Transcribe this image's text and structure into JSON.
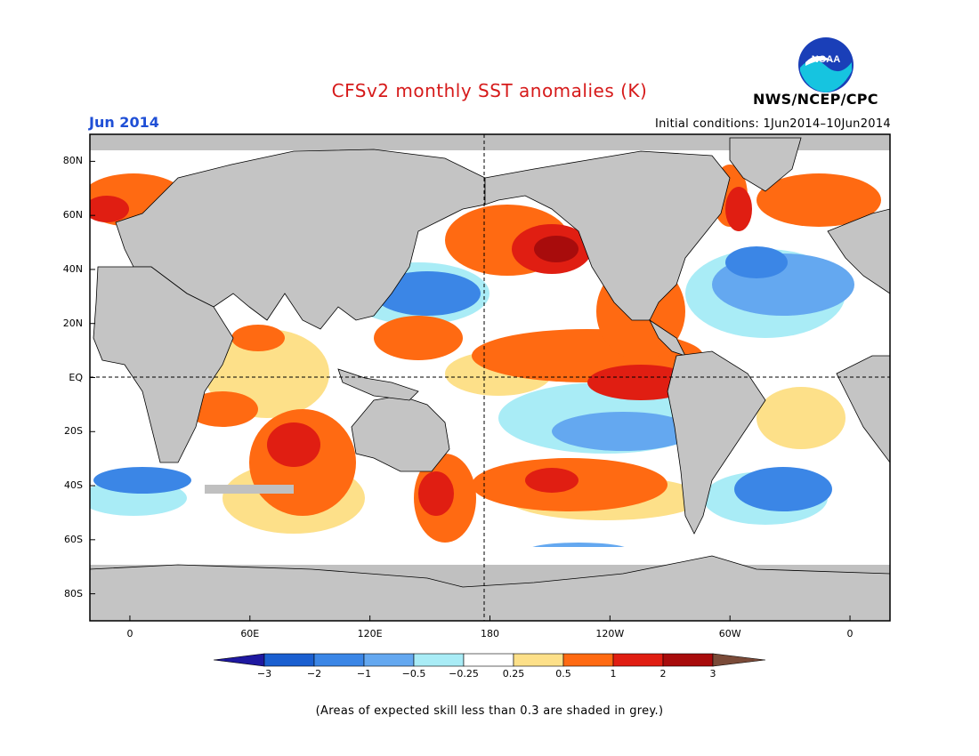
{
  "header": {
    "title": "CFSv2 monthly SST anomalies (K)",
    "agency": "NWS/NCEP/CPC",
    "month": "Jun 2014",
    "initial_conditions": "Initial conditions: 1Jun2014–10Jun2014"
  },
  "logo": {
    "text": "NOAA",
    "icon": "noaa-logo-icon"
  },
  "axes": {
    "lat_labels": [
      "80N",
      "60N",
      "40N",
      "20N",
      "EQ",
      "20S",
      "40S",
      "60S",
      "80S"
    ],
    "lat_values": [
      80,
      60,
      40,
      20,
      0,
      -20,
      -40,
      -60,
      -80
    ],
    "lon_labels": [
      "0",
      "60E",
      "120E",
      "180",
      "120W",
      "60W",
      "0"
    ],
    "lon_values": [
      0,
      60,
      120,
      180,
      240,
      300,
      360
    ],
    "lat_range": [
      -90,
      90
    ],
    "lon_range": [
      -20,
      380
    ]
  },
  "colorbar": {
    "labels": [
      "−3",
      "−2",
      "−1",
      "−0.5",
      "−0.25",
      "0.25",
      "0.5",
      "1",
      "2",
      "3"
    ],
    "colors": [
      "#1e18a0",
      "#1a5fd0",
      "#3b86e6",
      "#64a8f0",
      "#a9ecf6",
      "#ffffff",
      "#fde089",
      "#ff6a12",
      "#e01e12",
      "#a80c0c",
      "#7a4a38"
    ]
  },
  "colors": {
    "land": "#c4c4c4",
    "grey_skill": "#c0c0c0",
    "title": "#d61a1a",
    "month": "#1f4fd6"
  },
  "footnote": "(Areas of expected skill less than 0.3 are shaded in grey.)"
}
